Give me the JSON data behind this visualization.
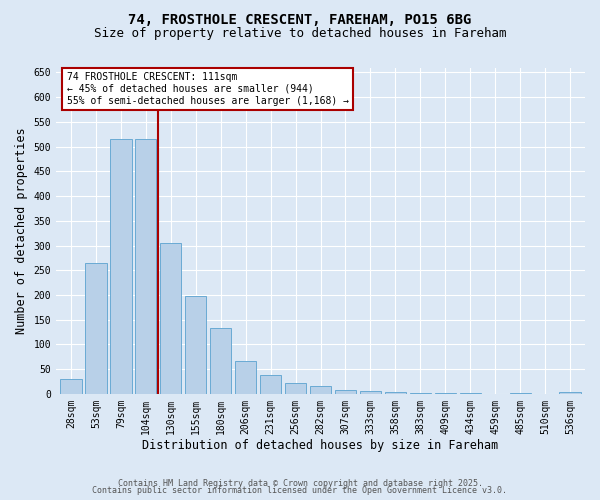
{
  "title1": "74, FROSTHOLE CRESCENT, FAREHAM, PO15 6BG",
  "title2": "Size of property relative to detached houses in Fareham",
  "xlabel": "Distribution of detached houses by size in Fareham",
  "ylabel": "Number of detached properties",
  "categories": [
    "28sqm",
    "53sqm",
    "79sqm",
    "104sqm",
    "130sqm",
    "155sqm",
    "180sqm",
    "206sqm",
    "231sqm",
    "256sqm",
    "282sqm",
    "307sqm",
    "333sqm",
    "358sqm",
    "383sqm",
    "409sqm",
    "434sqm",
    "459sqm",
    "485sqm",
    "510sqm",
    "536sqm"
  ],
  "values": [
    30,
    265,
    515,
    515,
    305,
    198,
    133,
    67,
    38,
    22,
    15,
    8,
    6,
    4,
    2,
    1,
    1,
    0,
    1,
    0,
    4
  ],
  "bar_color": "#b8d0e8",
  "bar_edgecolor": "#6aaad4",
  "vline_x": 3.5,
  "vline_color": "#aa0000",
  "annotation_text": "74 FROSTHOLE CRESCENT: 111sqm\n← 45% of detached houses are smaller (944)\n55% of semi-detached houses are larger (1,168) →",
  "annotation_box_color": "white",
  "annotation_box_edgecolor": "#aa0000",
  "ylim": [
    0,
    660
  ],
  "yticks": [
    0,
    50,
    100,
    150,
    200,
    250,
    300,
    350,
    400,
    450,
    500,
    550,
    600,
    650
  ],
  "footer1": "Contains HM Land Registry data © Crown copyright and database right 2025.",
  "footer2": "Contains public sector information licensed under the Open Government Licence v3.0.",
  "bg_color": "#dce8f5",
  "plot_bg_color": "#dce8f5",
  "title1_fontsize": 10,
  "title2_fontsize": 9,
  "annotation_fontsize": 7,
  "tick_fontsize": 7,
  "axis_label_fontsize": 8.5,
  "footer_fontsize": 6
}
